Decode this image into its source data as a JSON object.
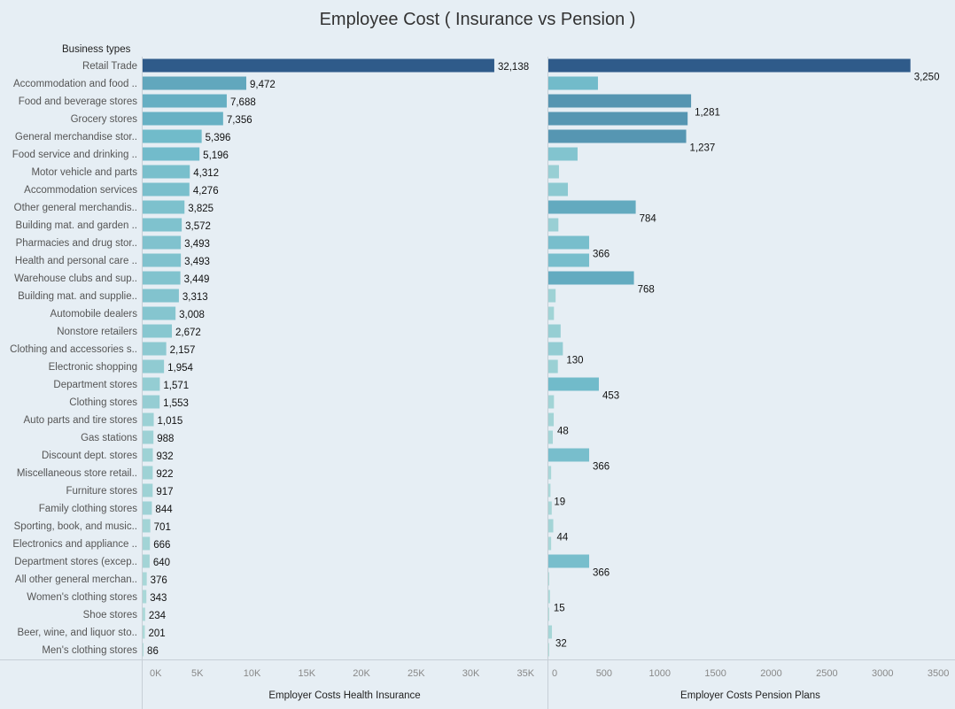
{
  "chart_data": {
    "type": "bar",
    "orientation": "horizontal",
    "title": "Employee Cost ( Insurance vs Pension )",
    "row_header": "Business types",
    "categories": [
      "Retail Trade",
      "Accommodation and food ..",
      "Food and beverage stores",
      "Grocery stores",
      "General merchandise stor..",
      "Food service and drinking ..",
      "Motor vehicle and parts",
      "Accommodation services",
      "Other general merchandis..",
      "Building mat. and garden ..",
      "Pharmacies and drug stor..",
      "Health and personal care ..",
      "Warehouse clubs and sup..",
      "Building mat. and supplie..",
      "Automobile dealers",
      "Nonstore retailers",
      "Clothing and accessories s..",
      "Electronic shopping",
      "Department stores",
      "Clothing stores",
      "Auto parts and tire stores",
      "Gas stations",
      "Discount dept. stores",
      "Miscellaneous store retail..",
      "Furniture stores",
      "Family clothing stores",
      "Sporting, book, and  music..",
      "Electronics and appliance ..",
      "Department stores (excep..",
      "All other general merchan..",
      "Women's clothing stores",
      "Shoe stores",
      "Beer, wine, and liquor sto..",
      "Men's clothing stores"
    ],
    "panels": [
      {
        "name": "Employer Costs Health Insurance",
        "xlabel": "Employer Costs Health Insurance",
        "xlim": [
          0,
          37000
        ],
        "ticks": [
          0,
          5000,
          10000,
          15000,
          20000,
          25000,
          30000,
          35000
        ],
        "tick_labels": [
          "0K",
          "5K",
          "10K",
          "15K",
          "20K",
          "25K",
          "30K",
          "35K"
        ],
        "values": [
          32138,
          9472,
          7688,
          7356,
          5396,
          5196,
          4312,
          4276,
          3825,
          3572,
          3493,
          3493,
          3449,
          3313,
          3008,
          2672,
          2157,
          1954,
          1571,
          1553,
          1015,
          988,
          932,
          922,
          917,
          844,
          701,
          666,
          640,
          376,
          343,
          234,
          201,
          86
        ],
        "labels": [
          "32,138",
          "9,472",
          "7,688",
          "7,356",
          "5,396",
          "5,196",
          "4,312",
          "4,276",
          "3,825",
          "3,572",
          "3,493",
          "3,493",
          "3,449",
          "3,313",
          "3,008",
          "2,672",
          "2,157",
          "1,954",
          "1,571",
          "1,553",
          "1,015",
          "988",
          "932",
          "922",
          "917",
          "844",
          "701",
          "666",
          "640",
          "376",
          "343",
          "234",
          "201",
          "86"
        ]
      },
      {
        "name": "Employer Costs Pension Plans",
        "xlabel": "Employer Costs Pension Plans",
        "xlim": [
          0,
          3650
        ],
        "ticks": [
          0,
          500,
          1000,
          1500,
          2000,
          2500,
          3000,
          3500
        ],
        "tick_labels": [
          "0",
          "500",
          "1000",
          "1500",
          "2000",
          "2500",
          "3000",
          "3500"
        ],
        "values": [
          3250,
          445,
          1281,
          1250,
          1237,
          262,
          95,
          175,
          784,
          90,
          366,
          366,
          768,
          65,
          50,
          110,
          130,
          85,
          453,
          50,
          48,
          40,
          366,
          25,
          19,
          30,
          44,
          25,
          366,
          8,
          15,
          5,
          32,
          2
        ],
        "labels": [
          "3,250",
          "",
          "1,281",
          "",
          "1,237",
          "",
          "",
          "",
          "784",
          "",
          "366",
          "",
          "768",
          "",
          "",
          "",
          "130",
          "",
          "453",
          "",
          "48",
          "",
          "366",
          "",
          "19",
          "",
          "44",
          "",
          "366",
          "",
          "15",
          "",
          "32",
          ""
        ]
      }
    ],
    "color_scale": {
      "low": "#b9e0dc",
      "mid": "#6cb8c9",
      "high": "#2f5b8a"
    },
    "grid": false,
    "legend": "none"
  }
}
